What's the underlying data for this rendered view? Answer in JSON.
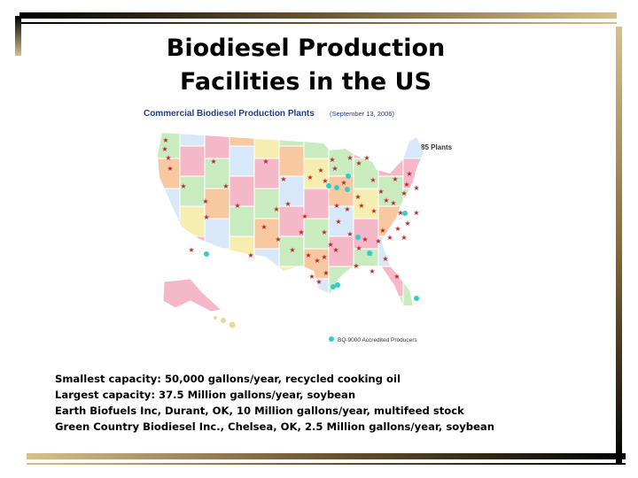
{
  "header": {
    "title_lines": [
      "Biodiesel Production",
      "Facilities in the US"
    ]
  },
  "map": {
    "title": "Commercial Biodiesel Production Plants",
    "date": "(September 13, 2006)",
    "count_label": "85 Plants",
    "legend": "BQ-9000 Accredited Producers"
  },
  "notes": [
    "Smallest capacity: 50,000 gallons/year, recycled cooking oil",
    "Largest capacity: 37.5 Million gallons/year, soybean",
    "Earth Biofuels Inc, Durant, OK, 10 Million gallons/year, multifeed stock",
    "Green Country Biodiesel Inc., Chelsea, OK, 2.5 Million gallons/year, soybean"
  ]
}
